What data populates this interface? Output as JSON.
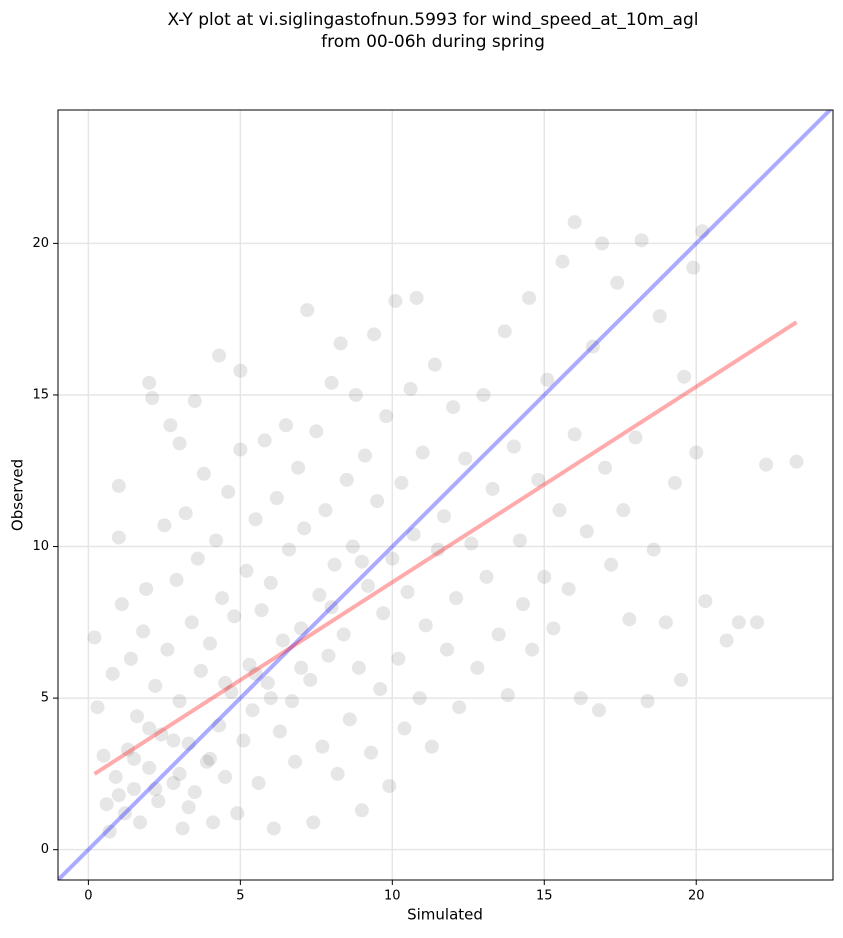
{
  "chart_data": {
    "type": "scatter",
    "title": [
      "X-Y plot at vi.siglingastofnun.5993 for wind_speed_at_10m_agl",
      "from 00-06h during spring"
    ],
    "xlabel": "Simulated",
    "ylabel": "Observed",
    "xlim": [
      -1,
      24.5
    ],
    "ylim": [
      -1,
      24.4
    ],
    "xticks": [
      0,
      5,
      10,
      15,
      20
    ],
    "yticks": [
      0,
      5,
      10,
      15,
      20
    ],
    "grid": true,
    "series": [
      {
        "color": "#555555",
        "x": [
          0.2,
          0.3,
          0.5,
          0.6,
          0.8,
          0.9,
          1.0,
          1.0,
          1.1,
          1.2,
          1.3,
          1.4,
          1.5,
          1.6,
          1.7,
          1.8,
          1.9,
          2.0,
          2.0,
          2.1,
          2.2,
          2.3,
          2.4,
          2.5,
          2.6,
          2.7,
          2.8,
          2.9,
          3.0,
          3.0,
          3.1,
          3.2,
          3.3,
          3.4,
          3.5,
          3.5,
          3.6,
          3.7,
          3.8,
          3.9,
          4.0,
          4.1,
          4.2,
          4.3,
          4.3,
          4.4,
          4.5,
          4.6,
          4.7,
          4.8,
          4.9,
          5.0,
          5.0,
          5.1,
          5.2,
          5.3,
          5.4,
          5.5,
          5.6,
          5.7,
          5.8,
          5.9,
          6.0,
          6.1,
          6.2,
          6.3,
          6.4,
          6.5,
          6.6,
          6.7,
          6.8,
          6.9,
          7.0,
          7.1,
          7.2,
          7.3,
          7.4,
          7.5,
          7.6,
          7.7,
          7.8,
          7.9,
          8.0,
          8.1,
          8.2,
          8.3,
          8.4,
          8.5,
          8.6,
          8.7,
          8.8,
          8.9,
          9.0,
          9.1,
          9.2,
          9.3,
          9.4,
          9.5,
          9.6,
          9.7,
          9.8,
          9.9,
          10.0,
          10.1,
          10.2,
          10.3,
          10.4,
          10.5,
          10.6,
          10.7,
          10.8,
          10.9,
          11.0,
          11.1,
          11.3,
          11.4,
          11.5,
          11.7,
          11.8,
          12.0,
          12.1,
          12.2,
          12.4,
          12.6,
          12.8,
          13.0,
          13.1,
          13.3,
          13.5,
          13.7,
          13.8,
          14.0,
          14.2,
          14.3,
          14.5,
          14.6,
          14.8,
          15.0,
          15.1,
          15.3,
          15.5,
          15.6,
          15.8,
          16.0,
          16.2,
          16.4,
          16.6,
          16.8,
          17.0,
          17.2,
          17.4,
          17.6,
          17.8,
          18.0,
          18.2,
          18.4,
          18.6,
          18.8,
          19.0,
          19.3,
          19.5,
          19.6,
          19.9,
          20.0,
          20.2,
          20.3,
          21.0,
          21.4,
          22.0,
          22.3,
          23.3,
          16.0,
          16.9,
          1.5,
          2.2,
          2.8,
          3.3,
          4.0,
          1.0,
          0.7,
          5.5,
          6.0,
          8.0,
          7.0,
          9.0,
          4.5,
          3.0,
          2.0
        ],
        "y": [
          7.0,
          4.7,
          3.1,
          1.5,
          5.8,
          2.4,
          12.0,
          10.3,
          8.1,
          1.2,
          3.3,
          6.3,
          2.0,
          4.4,
          0.9,
          7.2,
          8.6,
          15.4,
          2.7,
          14.9,
          5.4,
          1.6,
          3.8,
          10.7,
          6.6,
          14.0,
          2.2,
          8.9,
          13.4,
          4.9,
          0.7,
          11.1,
          3.5,
          7.5,
          14.8,
          1.9,
          9.6,
          5.9,
          12.4,
          2.9,
          6.8,
          0.9,
          10.2,
          16.3,
          4.1,
          8.3,
          2.4,
          11.8,
          5.2,
          7.7,
          1.2,
          13.2,
          15.8,
          3.6,
          9.2,
          6.1,
          4.6,
          10.9,
          2.2,
          7.9,
          13.5,
          5.5,
          8.8,
          0.7,
          11.6,
          3.9,
          6.9,
          14.0,
          9.9,
          4.9,
          2.9,
          12.6,
          7.3,
          10.6,
          17.8,
          5.6,
          0.9,
          13.8,
          8.4,
          3.4,
          11.2,
          6.4,
          15.4,
          9.4,
          2.5,
          16.7,
          7.1,
          12.2,
          4.3,
          10.0,
          15.0,
          6.0,
          1.3,
          13.0,
          8.7,
          3.2,
          17.0,
          11.5,
          5.3,
          7.8,
          14.3,
          2.1,
          9.6,
          18.1,
          6.3,
          12.1,
          4.0,
          8.5,
          15.2,
          10.4,
          18.2,
          5.0,
          13.1,
          7.4,
          3.4,
          16.0,
          9.9,
          11.0,
          6.6,
          14.6,
          8.3,
          4.7,
          12.9,
          10.1,
          6.0,
          15.0,
          9.0,
          11.9,
          7.1,
          17.1,
          5.1,
          13.3,
          10.2,
          8.1,
          18.2,
          6.6,
          12.2,
          9.0,
          15.5,
          7.3,
          11.2,
          19.4,
          8.6,
          13.7,
          5.0,
          10.5,
          16.6,
          4.6,
          12.6,
          9.4,
          18.7,
          11.2,
          7.6,
          13.6,
          20.1,
          4.9,
          9.9,
          17.6,
          7.5,
          12.1,
          5.6,
          15.6,
          19.2,
          13.1,
          20.4,
          8.2,
          6.9,
          7.5,
          7.5,
          12.7,
          12.8,
          20.7,
          20.0,
          3.0,
          2.0,
          3.6,
          1.4,
          3.0,
          1.8,
          0.6,
          5.8,
          5.0,
          8.0,
          6.0,
          9.5,
          5.5,
          2.5,
          4.0
        ]
      }
    ],
    "lines": [
      {
        "color": "#0000ff",
        "x": [
          -1,
          24.5
        ],
        "y": [
          -1,
          24.5
        ]
      },
      {
        "color": "#ff0000",
        "x": [
          0.2,
          23.3
        ],
        "y": [
          2.5,
          17.4
        ]
      }
    ]
  }
}
